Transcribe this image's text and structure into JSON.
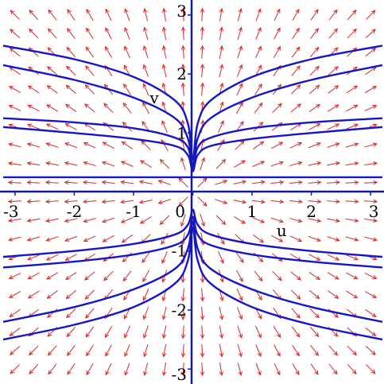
{
  "chart_data": {
    "type": "direction-field",
    "title": "",
    "xlabel": "u",
    "ylabel": "v",
    "xlim": [
      -3.2,
      3.2
    ],
    "ylim": [
      -3.2,
      3.2
    ],
    "grid": false,
    "x_ticks": [
      {
        "value": -3,
        "label": "-3"
      },
      {
        "value": -2,
        "label": "-2"
      },
      {
        "value": -1,
        "label": "-1"
      },
      {
        "value": 0,
        "label": "0"
      },
      {
        "value": 1,
        "label": "1"
      },
      {
        "value": 2,
        "label": "2"
      },
      {
        "value": 3,
        "label": "3"
      }
    ],
    "y_ticks": [
      {
        "value": 3,
        "label": "3"
      },
      {
        "value": 2,
        "label": "2"
      },
      {
        "value": 1,
        "label": "1"
      },
      {
        "value": -1,
        "label": "-1"
      },
      {
        "value": -2,
        "label": "-2"
      },
      {
        "value": -3,
        "label": "-3"
      }
    ],
    "field": {
      "du_dt": "u",
      "dv_dt": "v",
      "u_range": [
        -3,
        3
      ],
      "v_range": [
        -3,
        3
      ],
      "grid_count": 20
    },
    "series": [
      {
        "values": [
          [
            -3.2,
            2.48
          ],
          [
            -2,
            2.25
          ],
          [
            -1,
            1.95
          ],
          [
            -0.3,
            1.55
          ],
          [
            -0.08,
            1.15
          ],
          [
            0,
            0.55
          ],
          [
            0.08,
            1.15
          ],
          [
            0.3,
            1.55
          ],
          [
            1,
            1.95
          ],
          [
            2,
            2.25
          ],
          [
            3.2,
            2.48
          ]
        ]
      },
      {
        "values": [
          [
            -3.2,
            2.15
          ],
          [
            -2,
            1.9
          ],
          [
            -1,
            1.6
          ],
          [
            -0.3,
            1.25
          ],
          [
            -0.08,
            0.9
          ],
          [
            0,
            0.45
          ],
          [
            0.08,
            0.9
          ],
          [
            0.3,
            1.25
          ],
          [
            1,
            1.6
          ],
          [
            2,
            1.9
          ],
          [
            3.2,
            2.15
          ]
        ]
      },
      {
        "values": [
          [
            -3.2,
            1.25
          ],
          [
            -2,
            1.18
          ],
          [
            -1,
            1.08
          ],
          [
            -0.3,
            0.92
          ],
          [
            -0.08,
            0.75
          ],
          [
            0,
            0.4
          ],
          [
            0.08,
            0.75
          ],
          [
            0.3,
            0.92
          ],
          [
            1,
            1.08
          ],
          [
            2,
            1.18
          ],
          [
            3.2,
            1.25
          ]
        ]
      },
      {
        "values": [
          [
            -3.2,
            1.1
          ],
          [
            -2,
            1.0
          ],
          [
            -1,
            0.9
          ],
          [
            -0.3,
            0.78
          ],
          [
            -0.08,
            0.62
          ],
          [
            0,
            0.35
          ],
          [
            0.08,
            0.62
          ],
          [
            0.3,
            0.78
          ],
          [
            1,
            0.9
          ],
          [
            2,
            1.0
          ],
          [
            3.2,
            1.1
          ]
        ]
      },
      {
        "values": [
          [
            -3.2,
            0.25
          ],
          [
            3.2,
            0.25
          ]
        ]
      },
      {
        "values": [
          [
            -3.2,
            -1.1
          ],
          [
            -2,
            -1.0
          ],
          [
            -1,
            -0.88
          ],
          [
            -0.3,
            -0.72
          ],
          [
            -0.08,
            -0.55
          ],
          [
            0,
            -0.3
          ],
          [
            0.08,
            -0.55
          ],
          [
            0.3,
            -0.72
          ],
          [
            1,
            -0.88
          ],
          [
            2,
            -1.0
          ],
          [
            3.2,
            -1.1
          ]
        ]
      },
      {
        "values": [
          [
            -3.2,
            -1.28
          ],
          [
            -2,
            -1.18
          ],
          [
            -1,
            -1.06
          ],
          [
            -0.3,
            -0.9
          ],
          [
            -0.08,
            -0.72
          ],
          [
            0,
            -0.42
          ],
          [
            0.08,
            -0.72
          ],
          [
            0.3,
            -0.9
          ],
          [
            1,
            -1.06
          ],
          [
            2,
            -1.18
          ],
          [
            3.2,
            -1.28
          ]
        ]
      },
      {
        "values": [
          [
            -3.2,
            -2.2
          ],
          [
            -2,
            -1.95
          ],
          [
            -1,
            -1.65
          ],
          [
            -0.3,
            -1.3
          ],
          [
            -0.08,
            -0.95
          ],
          [
            0,
            -0.5
          ],
          [
            0.08,
            -0.95
          ],
          [
            0.3,
            -1.3
          ],
          [
            1,
            -1.65
          ],
          [
            2,
            -1.95
          ],
          [
            3.2,
            -2.2
          ]
        ]
      },
      {
        "values": [
          [
            -3.2,
            -2.5
          ],
          [
            -2,
            -2.25
          ],
          [
            -1,
            -1.95
          ],
          [
            -0.3,
            -1.55
          ],
          [
            -0.08,
            -1.15
          ],
          [
            0,
            -0.6
          ],
          [
            0.08,
            -1.15
          ],
          [
            0.3,
            -1.55
          ],
          [
            1,
            -1.95
          ],
          [
            2,
            -2.25
          ],
          [
            3.2,
            -2.5
          ]
        ]
      }
    ],
    "colors": {
      "arrows": "#d42a2a",
      "curves": "#1616c8",
      "axes": "#1818a0",
      "text": "#000000"
    }
  }
}
